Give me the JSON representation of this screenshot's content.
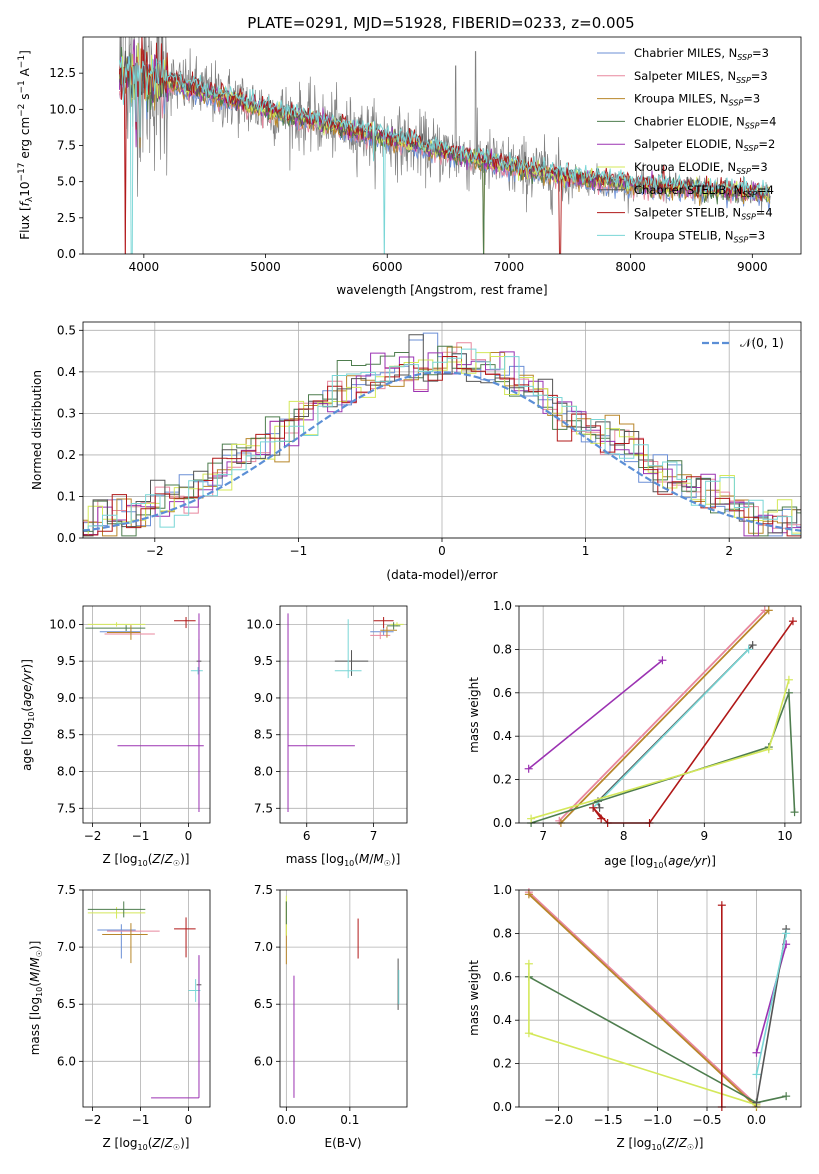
{
  "title": "PLATE=0291, MJD=51928, FIBERID=0233, z=0.005",
  "colors": {
    "chabrier_miles": "#6b8fd6",
    "salpeter_miles": "#e8879e",
    "kroupa_miles": "#b8862a",
    "chabrier_elodie": "#4e7d4e",
    "salpeter_elodie": "#9b32b2",
    "kroupa_elodie": "#d4e85a",
    "chabrier_stelib": "#555555",
    "salpeter_stelib": "#b01818",
    "kroupa_stelib": "#79d6d6",
    "data": "#808080",
    "normal": "#5b8fd6"
  },
  "chart_data": [
    {
      "type": "line",
      "xlabel": "wavelength [Angstrom, rest frame]",
      "ylabel": "Flux [f_λ10^-17 erg cm^-2 s^-1 A^-1]",
      "xlim": [
        3500,
        9400
      ],
      "ylim": [
        0,
        15
      ],
      "xticks": [
        "4000",
        "5000",
        "6000",
        "7000",
        "8000",
        "9000"
      ],
      "yticks": [
        "0.0",
        "2.5",
        "5.0",
        "7.5",
        "10.0",
        "12.5"
      ],
      "legend": [
        "Chabrier MILES, N_SSP=3",
        "Salpeter MILES, N_SSP=3",
        "Kroupa MILES, N_SSP=3",
        "Chabrier ELODIE, N_SSP=4",
        "Salpeter ELODIE, N_SSP=2",
        "Kroupa ELODIE, N_SSP=3",
        "Chabrier STELIB, N_SSP=4",
        "Salpeter STELIB, N_SSP=4",
        "Kroupa STELIB, N_SSP=3"
      ],
      "legend_position": "top-right",
      "continuum": {
        "x": [
          3800,
          4000,
          4500,
          5000,
          5500,
          6000,
          6500,
          7000,
          7500,
          8000,
          8500,
          9000,
          9150
        ],
        "y": [
          12.5,
          12.3,
          11.2,
          10.0,
          9.0,
          8.0,
          7.0,
          6.0,
          5.3,
          4.8,
          4.5,
          4.3,
          4.2
        ]
      }
    },
    {
      "type": "bar",
      "xlabel": "(data-model)/error",
      "ylabel": "Normed distribution",
      "xlim": [
        -2.5,
        2.5
      ],
      "ylim": [
        0,
        0.52
      ],
      "xticks": [
        "−2",
        "−1",
        "0",
        "1",
        "2"
      ],
      "yticks": [
        "0.0",
        "0.1",
        "0.2",
        "0.3",
        "0.4",
        "0.5"
      ],
      "legend": [
        "𝒩(0, 1)"
      ],
      "legend_position": "top-right",
      "grid": true
    },
    {
      "type": "scatter",
      "xlabel": "Z [log10(Z/Z☉)]",
      "ylabel": "age  [log10(age/yr)]",
      "xlim": [
        -2.2,
        0.45
      ],
      "ylim": [
        7.3,
        10.25
      ],
      "xticks": [
        "−2",
        "−1",
        "0"
      ],
      "yticks": [
        "7.5",
        "8.0",
        "8.5",
        "9.0",
        "9.5",
        "10.0"
      ]
    },
    {
      "type": "scatter",
      "xlabel": "mass [log10(M/M☉)]",
      "ylabel": "",
      "xlim": [
        5.6,
        7.5
      ],
      "ylim": [
        7.3,
        10.25
      ],
      "xticks": [
        "6",
        "7"
      ],
      "yticks": [
        "7.5",
        "8.0",
        "8.5",
        "9.0",
        "9.5",
        "10.0"
      ]
    },
    {
      "type": "line",
      "xlabel": "age  [log10(age/yr)]",
      "ylabel": "mass weight",
      "xlim": [
        6.7,
        10.2
      ],
      "ylim": [
        0,
        1
      ],
      "xticks": [
        "7",
        "8",
        "9",
        "10"
      ],
      "yticks": [
        "0.0",
        "0.2",
        "0.4",
        "0.6",
        "0.8",
        "1.0"
      ]
    },
    {
      "type": "scatter",
      "xlabel": "Z [log10(Z/Z☉)]",
      "ylabel": "mass [log10(M/M☉)]",
      "xlim": [
        -2.2,
        0.45
      ],
      "ylim": [
        5.6,
        7.5
      ],
      "xticks": [
        "−2",
        "−1",
        "0"
      ],
      "yticks": [
        "6.0",
        "6.5",
        "7.0",
        "7.5"
      ]
    },
    {
      "type": "scatter",
      "xlabel": "E(B-V)",
      "ylabel": "",
      "xlim": [
        -0.01,
        0.19
      ],
      "ylim": [
        5.6,
        7.5
      ],
      "xticks": [
        "0.0",
        "0.1"
      ],
      "yticks": [
        "6.0",
        "6.5",
        "7.0",
        "7.5"
      ]
    },
    {
      "type": "line",
      "xlabel": "Z [log10(Z/Z☉)]",
      "ylabel": "mass weight",
      "xlim": [
        -2.4,
        0.45
      ],
      "ylim": [
        0,
        1
      ],
      "xticks": [
        "−2.0",
        "−1.5",
        "−1.0",
        "−0.5",
        "0.0"
      ],
      "yticks": [
        "0.0",
        "0.2",
        "0.4",
        "0.6",
        "0.8",
        "1.0"
      ]
    }
  ]
}
